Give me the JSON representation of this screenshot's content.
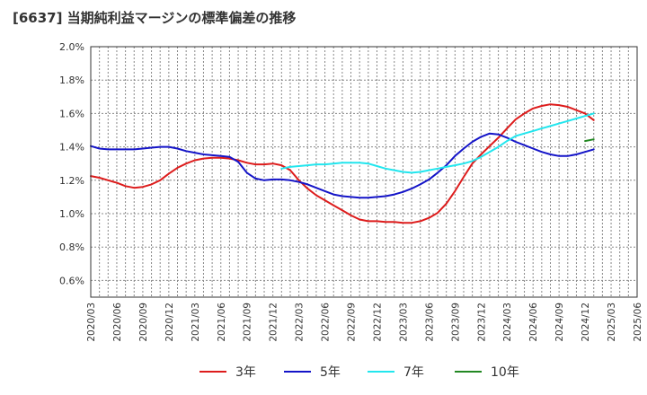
{
  "title": "[6637]  当期純利益マージンの標準偏差の推移",
  "chart_data": {
    "type": "line",
    "title": "[6637]  当期純利益マージンの標準偏差の推移",
    "xlabel": "",
    "ylabel": "",
    "ylim": [
      0.5,
      2.0
    ],
    "yticks": [
      0.6,
      0.8,
      1.0,
      1.2,
      1.4,
      1.6,
      1.8,
      2.0
    ],
    "ytick_labels": [
      "0.6%",
      "0.8%",
      "1.0%",
      "1.2%",
      "1.4%",
      "1.6%",
      "1.8%",
      "2.0%"
    ],
    "xtick_labels": [
      "2020/03",
      "2020/06",
      "2020/09",
      "2020/12",
      "2021/03",
      "2021/06",
      "2021/09",
      "2021/12",
      "2022/03",
      "2022/06",
      "2022/09",
      "2022/12",
      "2023/03",
      "2023/06",
      "2023/09",
      "2023/12",
      "2024/03",
      "2024/06",
      "2024/09",
      "2024/12",
      "2025/03",
      "2025/06"
    ],
    "grid": true,
    "legend_position": "bottom",
    "series": [
      {
        "name": "3年",
        "color": "#dd1c1c",
        "points": [
          [
            0,
            1.225
          ],
          [
            1,
            1.215
          ],
          [
            2,
            1.2
          ],
          [
            3,
            1.185
          ],
          [
            4,
            1.165
          ],
          [
            5,
            1.155
          ],
          [
            6,
            1.16
          ],
          [
            7,
            1.175
          ],
          [
            8,
            1.2
          ],
          [
            9,
            1.24
          ],
          [
            10,
            1.275
          ],
          [
            11,
            1.3
          ],
          [
            12,
            1.32
          ],
          [
            13,
            1.33
          ],
          [
            14,
            1.335
          ],
          [
            15,
            1.335
          ],
          [
            16,
            1.33
          ],
          [
            17,
            1.32
          ],
          [
            18,
            1.305
          ],
          [
            19,
            1.295
          ],
          [
            20,
            1.295
          ],
          [
            21,
            1.3
          ],
          [
            22,
            1.29
          ],
          [
            23,
            1.26
          ],
          [
            24,
            1.2
          ],
          [
            25,
            1.15
          ],
          [
            26,
            1.11
          ],
          [
            27,
            1.08
          ],
          [
            28,
            1.05
          ],
          [
            29,
            1.02
          ],
          [
            30,
            0.99
          ],
          [
            31,
            0.965
          ],
          [
            32,
            0.955
          ],
          [
            33,
            0.955
          ],
          [
            34,
            0.95
          ],
          [
            35,
            0.95
          ],
          [
            36,
            0.945
          ],
          [
            37,
            0.945
          ],
          [
            38,
            0.955
          ],
          [
            39,
            0.975
          ],
          [
            40,
            1.005
          ],
          [
            41,
            1.06
          ],
          [
            42,
            1.135
          ],
          [
            43,
            1.22
          ],
          [
            44,
            1.3
          ],
          [
            45,
            1.355
          ],
          [
            46,
            1.405
          ],
          [
            47,
            1.455
          ],
          [
            48,
            1.51
          ],
          [
            49,
            1.565
          ],
          [
            50,
            1.6
          ],
          [
            51,
            1.63
          ],
          [
            52,
            1.645
          ],
          [
            53,
            1.655
          ],
          [
            54,
            1.65
          ],
          [
            55,
            1.64
          ],
          [
            56,
            1.62
          ],
          [
            57,
            1.6
          ],
          [
            58,
            1.56
          ]
        ]
      },
      {
        "name": "5年",
        "color": "#1414c8",
        "points": [
          [
            0,
            1.405
          ],
          [
            1,
            1.39
          ],
          [
            2,
            1.385
          ],
          [
            3,
            1.385
          ],
          [
            4,
            1.385
          ],
          [
            5,
            1.385
          ],
          [
            6,
            1.39
          ],
          [
            7,
            1.395
          ],
          [
            8,
            1.4
          ],
          [
            9,
            1.4
          ],
          [
            10,
            1.39
          ],
          [
            11,
            1.375
          ],
          [
            12,
            1.365
          ],
          [
            13,
            1.355
          ],
          [
            14,
            1.35
          ],
          [
            15,
            1.345
          ],
          [
            16,
            1.34
          ],
          [
            17,
            1.31
          ],
          [
            18,
            1.245
          ],
          [
            19,
            1.21
          ],
          [
            20,
            1.2
          ],
          [
            21,
            1.205
          ],
          [
            22,
            1.205
          ],
          [
            23,
            1.2
          ],
          [
            24,
            1.19
          ],
          [
            25,
            1.175
          ],
          [
            26,
            1.155
          ],
          [
            27,
            1.135
          ],
          [
            28,
            1.115
          ],
          [
            29,
            1.105
          ],
          [
            30,
            1.1
          ],
          [
            31,
            1.095
          ],
          [
            32,
            1.095
          ],
          [
            33,
            1.1
          ],
          [
            34,
            1.105
          ],
          [
            35,
            1.115
          ],
          [
            36,
            1.13
          ],
          [
            37,
            1.15
          ],
          [
            38,
            1.175
          ],
          [
            39,
            1.205
          ],
          [
            40,
            1.245
          ],
          [
            41,
            1.29
          ],
          [
            42,
            1.345
          ],
          [
            43,
            1.39
          ],
          [
            44,
            1.43
          ],
          [
            45,
            1.46
          ],
          [
            46,
            1.48
          ],
          [
            47,
            1.475
          ],
          [
            48,
            1.455
          ],
          [
            49,
            1.43
          ],
          [
            50,
            1.41
          ],
          [
            51,
            1.39
          ],
          [
            52,
            1.37
          ],
          [
            53,
            1.355
          ],
          [
            54,
            1.345
          ],
          [
            55,
            1.345
          ],
          [
            56,
            1.355
          ],
          [
            57,
            1.37
          ],
          [
            58,
            1.385
          ]
        ]
      },
      {
        "name": "7年",
        "color": "#22e6ee",
        "points": [
          [
            22,
            1.27
          ],
          [
            23,
            1.28
          ],
          [
            24,
            1.285
          ],
          [
            25,
            1.29
          ],
          [
            26,
            1.295
          ],
          [
            27,
            1.295
          ],
          [
            28,
            1.3
          ],
          [
            29,
            1.305
          ],
          [
            30,
            1.305
          ],
          [
            31,
            1.305
          ],
          [
            32,
            1.3
          ],
          [
            33,
            1.285
          ],
          [
            34,
            1.27
          ],
          [
            35,
            1.26
          ],
          [
            36,
            1.25
          ],
          [
            37,
            1.245
          ],
          [
            38,
            1.25
          ],
          [
            39,
            1.26
          ],
          [
            40,
            1.27
          ],
          [
            41,
            1.28
          ],
          [
            42,
            1.29
          ],
          [
            43,
            1.3
          ],
          [
            44,
            1.315
          ],
          [
            45,
            1.34
          ],
          [
            46,
            1.37
          ],
          [
            47,
            1.4
          ],
          [
            48,
            1.435
          ],
          [
            49,
            1.465
          ],
          [
            50,
            1.48
          ],
          [
            51,
            1.495
          ],
          [
            52,
            1.51
          ],
          [
            53,
            1.525
          ],
          [
            54,
            1.54
          ],
          [
            55,
            1.555
          ],
          [
            56,
            1.57
          ],
          [
            57,
            1.585
          ],
          [
            58,
            1.6
          ]
        ]
      },
      {
        "name": "10年",
        "color": "#228822",
        "points": [
          [
            57,
            1.435
          ],
          [
            58,
            1.445
          ]
        ]
      }
    ]
  }
}
